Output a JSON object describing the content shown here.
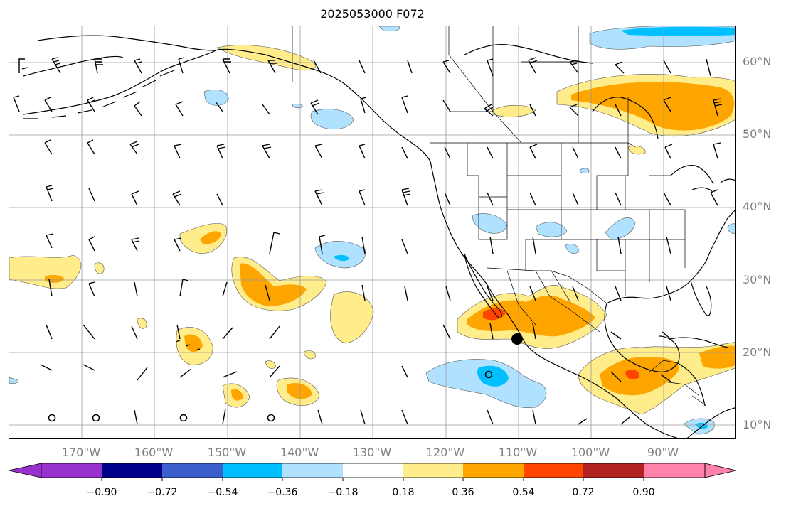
{
  "title": "2025053000 F072",
  "map": {
    "latitude_labels": [
      "60°N",
      "50°N",
      "40°N",
      "30°N",
      "20°N",
      "10°N"
    ],
    "longitude_labels": [
      "170°W",
      "160°W",
      "150°W",
      "140°W",
      "130°W",
      "120°W",
      "110°W",
      "100°W",
      "90°W"
    ],
    "gridlines": true,
    "features": [
      "coastlines",
      "country-borders",
      "us-state-borders",
      "wind-barbs",
      "shaded-contours"
    ]
  },
  "colorbar": {
    "tick_labels": [
      "−0.90",
      "−0.72",
      "−0.54",
      "−0.36",
      "−0.18",
      "0.18",
      "0.36",
      "0.54",
      "0.72",
      "0.90"
    ],
    "colors": [
      "#9932cc",
      "#00008b",
      "#3a5fcd",
      "#00bfff",
      "#b0e2ff",
      "#ffffff",
      "#ffec8b",
      "#ffa500",
      "#ff4500",
      "#b22222",
      "#ff82ab"
    ],
    "extend": "both"
  },
  "colors": {
    "grid": "#9a9a9a",
    "coast": "#000000",
    "label": "#808080"
  }
}
